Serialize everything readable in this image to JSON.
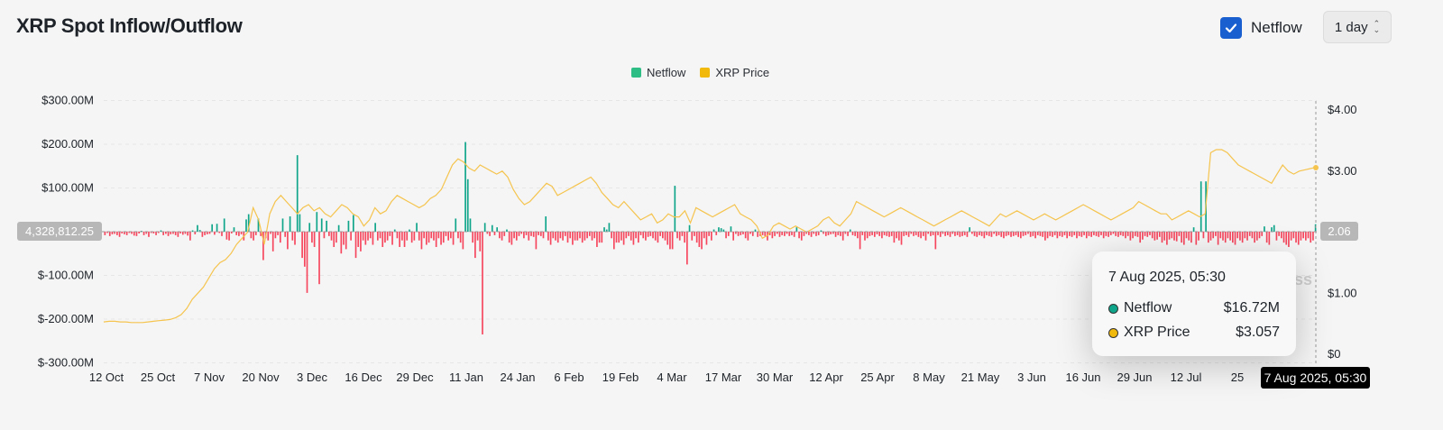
{
  "header": {
    "title": "XRP Spot Inflow/Outflow"
  },
  "controls": {
    "netflow_label": "Netflow",
    "netflow_checked": true,
    "interval_value": "1 day"
  },
  "chart_data": {
    "type": "bar+line",
    "title": "XRP Spot Inflow/Outflow",
    "legend": [
      {
        "name": "Netflow",
        "color": "#2ebd85"
      },
      {
        "name": "XRP Price",
        "color": "#f0b90b"
      }
    ],
    "colors": {
      "positive": "#0ea58a",
      "negative": "#f6465d",
      "price": "#f5c44e"
    },
    "y_left": {
      "min": -300000000,
      "max": 300000000,
      "ticks": [
        {
          "v": 300000000,
          "label": "$300.00M"
        },
        {
          "v": 200000000,
          "label": "$200.00M"
        },
        {
          "v": 100000000,
          "label": "$100.00M"
        },
        {
          "v": -100000000,
          "label": "$-100.00M"
        },
        {
          "v": -200000000,
          "label": "$-200.00M"
        },
        {
          "v": -300000000,
          "label": "$-300.00M"
        }
      ]
    },
    "y_right": {
      "min": 0,
      "max": 4,
      "ticks": [
        {
          "v": 4,
          "label": "$4.00"
        },
        {
          "v": 3,
          "label": "$3.00"
        },
        {
          "v": 1,
          "label": "$1.00"
        },
        {
          "v": 0,
          "label": "$0"
        }
      ]
    },
    "x_ticks": [
      "12 Oct",
      "25 Oct",
      "7 Nov",
      "20 Nov",
      "3 Dec",
      "16 Dec",
      "29 Dec",
      "11 Jan",
      "24 Jan",
      "6 Feb",
      "19 Feb",
      "4 Mar",
      "17 Mar",
      "30 Mar",
      "12 Apr",
      "25 Apr",
      "8 May",
      "21 May",
      "3 Jun",
      "16 Jun",
      "29 Jun",
      "12 Jul",
      "25"
    ],
    "netflow_millions": [
      -8,
      -3,
      -10,
      -6,
      -5,
      -8,
      -12,
      -4,
      -6,
      -8,
      -3,
      -5,
      -9,
      -10,
      -4,
      2,
      -8,
      -5,
      -12,
      -3,
      -4,
      -8,
      -3,
      3,
      -8,
      -5,
      -10,
      -6,
      -5,
      -8,
      -12,
      -4,
      -7,
      -5,
      -9,
      -20,
      3,
      -6,
      15,
      4,
      -12,
      -8,
      -6,
      -5,
      17,
      -7,
      18,
      -3,
      -10,
      30,
      -18,
      -20,
      -4,
      10,
      -8,
      -10,
      -6,
      -20,
      28,
      40,
      -15,
      -20,
      -8,
      30,
      -10,
      -65,
      -15,
      -20,
      -5,
      -45,
      -15,
      -8,
      -25,
      30,
      -12,
      -40,
      35,
      -20,
      -30,
      175,
      40,
      -60,
      -80,
      -140,
      20,
      -25,
      -35,
      45,
      -120,
      30,
      -15,
      25,
      -10,
      -20,
      -35,
      -25,
      15,
      -50,
      -30,
      -40,
      25,
      -20,
      38,
      -60,
      -35,
      -45,
      -20,
      -30,
      -20,
      -15,
      -30,
      20,
      -20,
      -15,
      -35,
      -25,
      -20,
      -10,
      -30,
      5,
      -15,
      -35,
      -20,
      -35,
      -20,
      5,
      -25,
      -20,
      20,
      -20,
      -40,
      -15,
      -30,
      -25,
      -15,
      -20,
      -35,
      -15,
      -30,
      -25,
      -10,
      -20,
      -15,
      -30,
      30,
      -15,
      -25,
      -40,
      205,
      120,
      30,
      -25,
      -60,
      -20,
      -45,
      -235,
      20,
      -5,
      -10,
      15,
      -8,
      10,
      -15,
      -20,
      -10,
      5,
      -25,
      -30,
      -15,
      -20,
      -10,
      -5,
      -15,
      -8,
      -20,
      -10,
      -12,
      -40,
      -8,
      -10,
      -15,
      35,
      -20,
      -30,
      -15,
      -20,
      -25,
      -15,
      -20,
      -10,
      -25,
      -15,
      -30,
      -20,
      -20,
      -15,
      -25,
      -20,
      -15,
      -10,
      -20,
      -15,
      -35,
      -25,
      -25,
      10,
      5,
      20,
      -15,
      -40,
      -25,
      -25,
      -20,
      -30,
      -15,
      -10,
      -20,
      -30,
      -15,
      -25,
      -8,
      -15,
      -20,
      -12,
      -10,
      -15,
      -20,
      -25,
      -10,
      -15,
      -20,
      -30,
      -40,
      -40,
      105,
      -15,
      -20,
      -10,
      -25,
      -75,
      15,
      -20,
      -10,
      -25,
      -35,
      -40,
      -15,
      -30,
      -10,
      -20,
      5,
      -8,
      10,
      8,
      5,
      -15,
      -10,
      12,
      -20,
      -5,
      -10,
      -8,
      -6,
      -15,
      -20,
      -5,
      -10,
      5,
      -12,
      -10,
      -8,
      -10,
      -20,
      -8,
      -15,
      -10,
      -5,
      -12,
      -8,
      -10,
      -5,
      -10,
      -8,
      -12,
      10,
      -15,
      -20,
      -10,
      -5,
      -8,
      -12,
      -5,
      -10,
      -8,
      3,
      -5,
      -10,
      -8,
      -6,
      -5,
      -12,
      -8,
      -10,
      -20,
      -5,
      -10,
      5,
      -8,
      -10,
      -15,
      -40,
      -8,
      -20,
      -15,
      -10,
      -8,
      -12,
      -6,
      -10,
      -15,
      -8,
      -10,
      -12,
      -10,
      -25,
      -15,
      -20,
      -30,
      -10,
      -8,
      -12,
      -5,
      -10,
      -8,
      -12,
      -15,
      -10,
      -20,
      -5,
      -10,
      -8,
      -40,
      -8,
      -12,
      -5,
      -10,
      -8,
      -12,
      -5,
      -10,
      -8,
      -12,
      -10,
      -8,
      -12,
      10,
      -5,
      -10,
      -12,
      -8,
      -10,
      -15,
      -8,
      -10,
      -12,
      -5,
      -10,
      -8,
      -12,
      -15,
      -10,
      -8,
      -12,
      -10,
      -8,
      -12,
      -15,
      -10,
      -8,
      -5,
      -12,
      -10,
      -15,
      -8,
      -10,
      -12,
      -20,
      -15,
      -10,
      -12,
      -8,
      -15,
      -10,
      -12,
      -8,
      -15,
      -10,
      -12,
      -8,
      -15,
      -10,
      -12,
      -8,
      -15,
      -10,
      -12,
      -8,
      -10,
      -12,
      -8,
      -15,
      -10,
      -12,
      -8,
      -5,
      -10,
      -12,
      -8,
      -10,
      -15,
      -10,
      -20,
      -15,
      -10,
      -12,
      -25,
      -18,
      -10,
      -12,
      -8,
      -15,
      -20,
      -18,
      -12,
      -25,
      -20,
      -30,
      -18,
      -15,
      -20,
      -22,
      -10,
      -25,
      -30,
      -15,
      -20,
      -25,
      10,
      -30,
      -20,
      115,
      -15,
      115,
      -25,
      -20,
      -15,
      -10,
      -30,
      -15,
      -20,
      -25,
      -15,
      -20,
      -25,
      -30,
      -15,
      -20,
      -25,
      -15,
      -20,
      -10,
      -15,
      -25,
      -20,
      -15,
      -10,
      12,
      -25,
      -30,
      10,
      15,
      -20,
      -10,
      -15,
      -25,
      -30,
      -35,
      -20,
      -15,
      -25,
      -30,
      -20,
      -15,
      -20,
      -15,
      -25,
      -20,
      17
    ],
    "xrp_price_usd": [
      0.53,
      0.54,
      0.54,
      0.53,
      0.53,
      0.52,
      0.52,
      0.52,
      0.53,
      0.54,
      0.55,
      0.56,
      0.57,
      0.6,
      0.65,
      0.75,
      0.9,
      1.0,
      1.1,
      1.25,
      1.4,
      1.5,
      1.55,
      1.65,
      1.8,
      1.9,
      2.0,
      2.4,
      2.2,
      1.8,
      2.3,
      2.5,
      2.6,
      2.5,
      2.4,
      2.3,
      2.4,
      2.45,
      2.35,
      2.4,
      2.3,
      2.25,
      2.35,
      2.45,
      2.4,
      2.3,
      2.25,
      2.1,
      2.2,
      2.4,
      2.3,
      2.35,
      2.5,
      2.6,
      2.55,
      2.5,
      2.45,
      2.4,
      2.45,
      2.55,
      2.6,
      2.7,
      2.9,
      3.1,
      3.2,
      3.15,
      3.05,
      3.0,
      3.1,
      3.05,
      3.0,
      2.95,
      3.0,
      2.9,
      2.7,
      2.55,
      2.45,
      2.5,
      2.6,
      2.7,
      2.8,
      2.75,
      2.6,
      2.65,
      2.7,
      2.75,
      2.8,
      2.85,
      2.9,
      2.8,
      2.65,
      2.55,
      2.45,
      2.4,
      2.5,
      2.4,
      2.3,
      2.2,
      2.25,
      2.3,
      2.15,
      2.2,
      2.3,
      2.25,
      2.25,
      2.35,
      2.15,
      2.4,
      2.35,
      2.3,
      2.25,
      2.3,
      2.35,
      2.4,
      2.45,
      2.3,
      2.25,
      2.2,
      2.1,
      1.9,
      1.95,
      2.1,
      2.15,
      2.1,
      2.05,
      2.1,
      2.05,
      2.0,
      2.05,
      2.1,
      2.2,
      2.25,
      2.15,
      2.1,
      2.2,
      2.3,
      2.5,
      2.45,
      2.4,
      2.35,
      2.3,
      2.25,
      2.3,
      2.35,
      2.4,
      2.35,
      2.3,
      2.25,
      2.2,
      2.15,
      2.1,
      2.15,
      2.2,
      2.25,
      2.3,
      2.35,
      2.3,
      2.25,
      2.2,
      2.15,
      2.1,
      2.2,
      2.3,
      2.25,
      2.3,
      2.35,
      2.3,
      2.25,
      2.2,
      2.25,
      2.3,
      2.25,
      2.2,
      2.25,
      2.3,
      2.35,
      2.4,
      2.45,
      2.4,
      2.35,
      2.3,
      2.25,
      2.2,
      2.25,
      2.3,
      2.35,
      2.4,
      2.5,
      2.45,
      2.4,
      2.35,
      2.3,
      2.3,
      2.2,
      2.25,
      2.3,
      2.35,
      2.3,
      2.25,
      2.3,
      3.3,
      3.35,
      3.35,
      3.3,
      3.2,
      3.1,
      3.05,
      3.0,
      2.95,
      2.9,
      2.85,
      2.8,
      2.95,
      3.1,
      3.0,
      2.95,
      3.0,
      3.02,
      3.04,
      3.06
    ],
    "tooltip": {
      "date": "7 Aug 2025, 05:30",
      "rows": [
        {
          "name": "Netflow",
          "value": "$16.72M",
          "dot": "#0ea58a"
        },
        {
          "name": "XRP Price",
          "value": "$3.057",
          "dot": "#f0b90b"
        }
      ]
    },
    "crosshair": {
      "left_value": "4,328,812.25",
      "right_value": "2.06",
      "date_label": "7 Aug 2025, 05:30"
    },
    "watermark": "ss"
  }
}
